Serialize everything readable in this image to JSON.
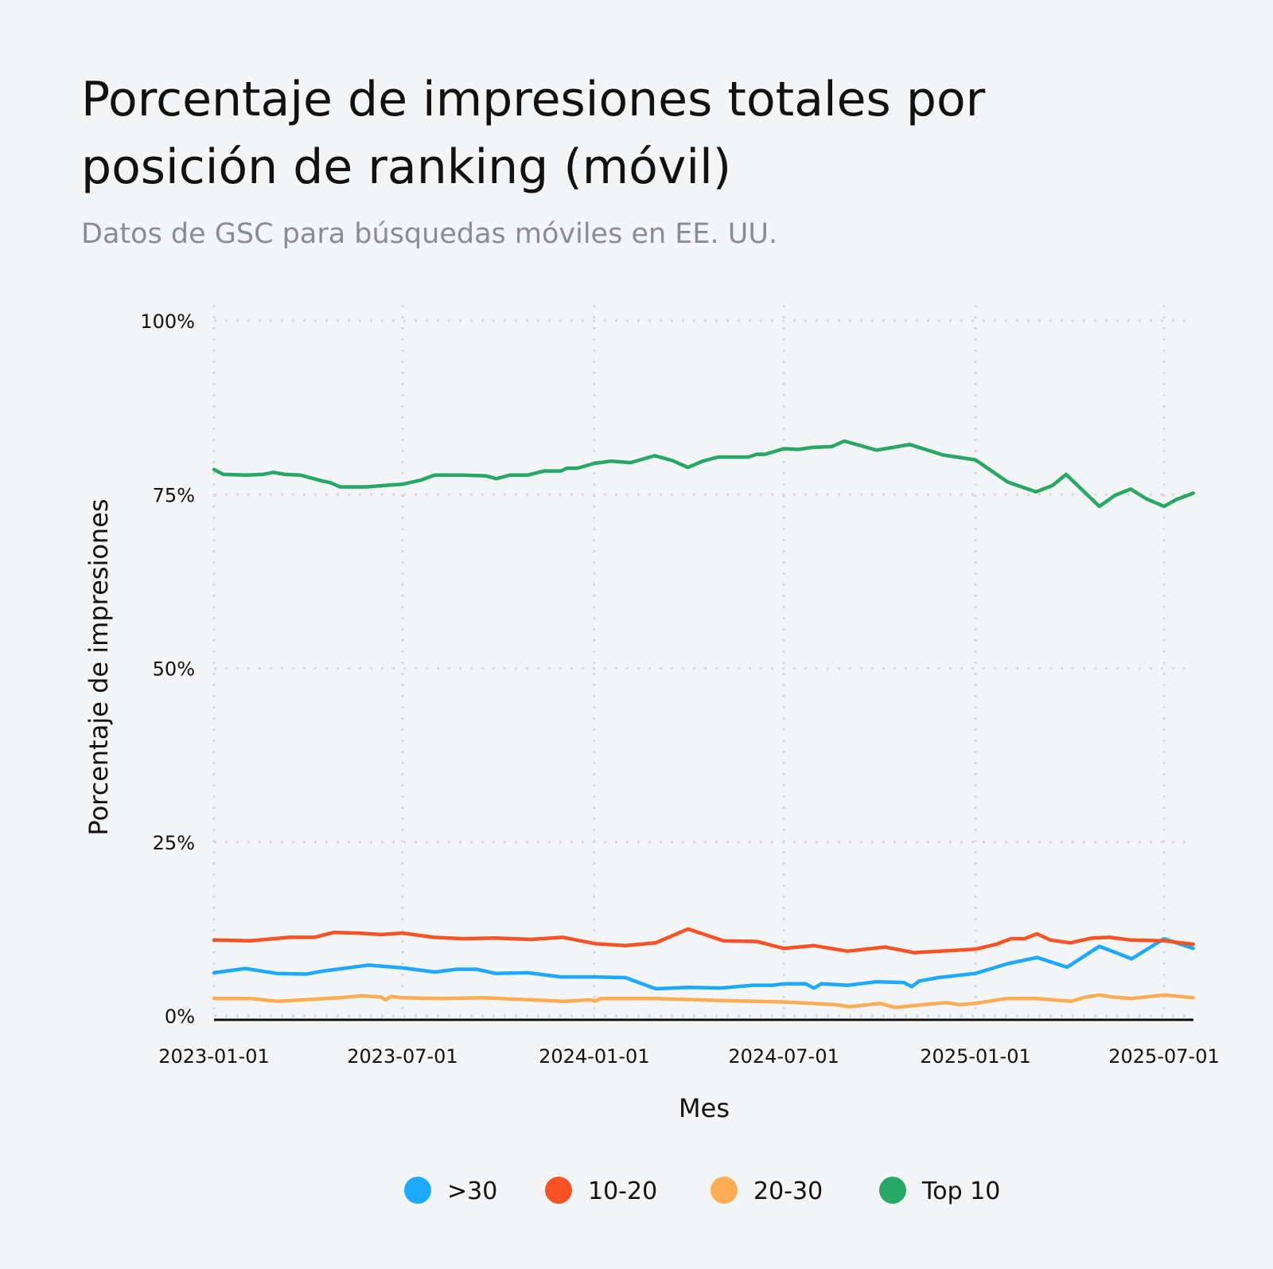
{
  "chart_data": {
    "type": "line",
    "title": "Porcentaje de impresiones totales por posición de ranking (móvil)",
    "title_lines": [
      "Porcentaje de impresiones totales por",
      "posición de ranking (móvil)"
    ],
    "subtitle": "Datos de GSC para búsquedas móviles en EE. UU.",
    "xlabel": "Mes",
    "ylabel": "Porcentaje de impresiones",
    "x_ticks": [
      "2023-01-01",
      "2023-07-01",
      "2024-01-01",
      "2024-07-01",
      "2025-01-01",
      "2025-07-01"
    ],
    "y_ticks": [
      0,
      25,
      50,
      75,
      100
    ],
    "y_tick_labels": [
      "0%",
      "25%",
      "50%",
      "75%",
      "100%"
    ],
    "ylim": [
      0,
      100
    ],
    "xlim": [
      "2023-01-01",
      "2025-07-29"
    ],
    "grid": true,
    "legend_position": "bottom",
    "series": [
      {
        "name": ">30",
        "color": "#1da9fc",
        "points": [
          [
            "2023-01-01",
            6.2
          ],
          [
            "2023-01-31",
            6.8
          ],
          [
            "2023-03-02",
            6.1
          ],
          [
            "2023-03-31",
            6.0
          ],
          [
            "2023-04-14",
            6.4
          ],
          [
            "2023-05-29",
            7.3
          ],
          [
            "2023-07-01",
            6.9
          ],
          [
            "2023-08-01",
            6.3
          ],
          [
            "2023-08-22",
            6.7
          ],
          [
            "2023-09-10",
            6.7
          ],
          [
            "2023-09-28",
            6.1
          ],
          [
            "2023-10-29",
            6.2
          ],
          [
            "2023-11-30",
            5.6
          ],
          [
            "2024-01-01",
            5.6
          ],
          [
            "2024-01-31",
            5.5
          ],
          [
            "2024-02-29",
            3.9
          ],
          [
            "2024-03-31",
            4.1
          ],
          [
            "2024-05-01",
            4.0
          ],
          [
            "2024-06-01",
            4.4
          ],
          [
            "2024-06-20",
            4.4
          ],
          [
            "2024-07-01",
            4.6
          ],
          [
            "2024-07-22",
            4.6
          ],
          [
            "2024-07-30",
            4.0
          ],
          [
            "2024-08-06",
            4.6
          ],
          [
            "2024-08-31",
            4.4
          ],
          [
            "2024-09-28",
            4.9
          ],
          [
            "2024-10-24",
            4.8
          ],
          [
            "2024-11-01",
            4.2
          ],
          [
            "2024-11-08",
            5.0
          ],
          [
            "2024-11-26",
            5.5
          ],
          [
            "2025-01-01",
            6.1
          ],
          [
            "2025-02-01",
            7.5
          ],
          [
            "2025-03-01",
            8.4
          ],
          [
            "2025-03-30",
            7.0
          ],
          [
            "2025-04-30",
            10.0
          ],
          [
            "2025-05-31",
            8.2
          ],
          [
            "2025-07-01",
            11.1
          ],
          [
            "2025-07-29",
            9.7
          ]
        ]
      },
      {
        "name": "10-20",
        "color": "#f95224",
        "points": [
          [
            "2023-01-01",
            10.9
          ],
          [
            "2023-02-05",
            10.8
          ],
          [
            "2023-03-14",
            11.3
          ],
          [
            "2023-04-07",
            11.3
          ],
          [
            "2023-04-26",
            12.0
          ],
          [
            "2023-05-20",
            11.9
          ],
          [
            "2023-06-10",
            11.7
          ],
          [
            "2023-07-01",
            11.9
          ],
          [
            "2023-07-31",
            11.3
          ],
          [
            "2023-08-28",
            11.1
          ],
          [
            "2023-09-28",
            11.2
          ],
          [
            "2023-11-01",
            11.0
          ],
          [
            "2023-12-02",
            11.3
          ],
          [
            "2024-01-01",
            10.4
          ],
          [
            "2024-01-31",
            10.1
          ],
          [
            "2024-02-29",
            10.5
          ],
          [
            "2024-03-31",
            12.5
          ],
          [
            "2024-05-04",
            10.8
          ],
          [
            "2024-06-05",
            10.7
          ],
          [
            "2024-07-01",
            9.7
          ],
          [
            "2024-07-30",
            10.1
          ],
          [
            "2024-08-31",
            9.3
          ],
          [
            "2024-10-06",
            9.9
          ],
          [
            "2024-11-03",
            9.1
          ],
          [
            "2025-01-01",
            9.6
          ],
          [
            "2025-01-21",
            10.3
          ],
          [
            "2025-02-04",
            11.1
          ],
          [
            "2025-02-17",
            11.1
          ],
          [
            "2025-03-01",
            11.8
          ],
          [
            "2025-03-14",
            10.9
          ],
          [
            "2025-04-02",
            10.5
          ],
          [
            "2025-04-23",
            11.2
          ],
          [
            "2025-05-10",
            11.3
          ],
          [
            "2025-05-30",
            10.9
          ],
          [
            "2025-07-01",
            10.8
          ],
          [
            "2025-07-29",
            10.3
          ]
        ]
      },
      {
        "name": "20-30",
        "color": "#fdae55",
        "points": [
          [
            "2023-01-01",
            2.5
          ],
          [
            "2023-02-05",
            2.5
          ],
          [
            "2023-03-03",
            2.1
          ],
          [
            "2023-05-02",
            2.6
          ],
          [
            "2023-05-23",
            2.9
          ],
          [
            "2023-06-10",
            2.7
          ],
          [
            "2023-06-15",
            2.3
          ],
          [
            "2023-06-20",
            2.8
          ],
          [
            "2023-07-01",
            2.6
          ],
          [
            "2023-08-07",
            2.5
          ],
          [
            "2023-09-17",
            2.6
          ],
          [
            "2023-11-01",
            2.3
          ],
          [
            "2023-12-03",
            2.1
          ],
          [
            "2023-12-28",
            2.3
          ],
          [
            "2024-01-02",
            2.1
          ],
          [
            "2024-01-07",
            2.5
          ],
          [
            "2024-02-29",
            2.5
          ],
          [
            "2024-05-01",
            2.2
          ],
          [
            "2024-07-01",
            2.0
          ],
          [
            "2024-08-20",
            1.6
          ],
          [
            "2024-09-02",
            1.3
          ],
          [
            "2024-10-01",
            1.8
          ],
          [
            "2024-10-16",
            1.2
          ],
          [
            "2024-12-03",
            1.9
          ],
          [
            "2024-12-17",
            1.6
          ],
          [
            "2025-01-01",
            1.8
          ],
          [
            "2025-01-31",
            2.5
          ],
          [
            "2025-03-01",
            2.5
          ],
          [
            "2025-04-03",
            2.1
          ],
          [
            "2025-04-17",
            2.7
          ],
          [
            "2025-04-30",
            3.0
          ],
          [
            "2025-05-13",
            2.7
          ],
          [
            "2025-05-31",
            2.5
          ],
          [
            "2025-07-01",
            3.0
          ],
          [
            "2025-07-29",
            2.6
          ]
        ]
      },
      {
        "name": "Top 10",
        "color": "#27a865",
        "points": [
          [
            "2023-01-01",
            78.6
          ],
          [
            "2023-01-10",
            77.9
          ],
          [
            "2023-02-01",
            77.8
          ],
          [
            "2023-02-17",
            77.9
          ],
          [
            "2023-02-27",
            78.2
          ],
          [
            "2023-03-10",
            77.9
          ],
          [
            "2023-03-25",
            77.8
          ],
          [
            "2023-04-14",
            77.0
          ],
          [
            "2023-04-23",
            76.7
          ],
          [
            "2023-05-02",
            76.1
          ],
          [
            "2023-05-27",
            76.1
          ],
          [
            "2023-06-22",
            76.4
          ],
          [
            "2023-07-01",
            76.5
          ],
          [
            "2023-07-19",
            77.1
          ],
          [
            "2023-08-01",
            77.8
          ],
          [
            "2023-08-27",
            77.8
          ],
          [
            "2023-09-19",
            77.7
          ],
          [
            "2023-09-29",
            77.3
          ],
          [
            "2023-10-12",
            77.8
          ],
          [
            "2023-10-29",
            77.8
          ],
          [
            "2023-11-14",
            78.4
          ],
          [
            "2023-11-30",
            78.4
          ],
          [
            "2023-12-06",
            78.8
          ],
          [
            "2023-12-16",
            78.8
          ],
          [
            "2024-01-01",
            79.5
          ],
          [
            "2024-01-17",
            79.8
          ],
          [
            "2024-02-05",
            79.6
          ],
          [
            "2024-02-28",
            80.6
          ],
          [
            "2024-03-16",
            79.9
          ],
          [
            "2024-03-31",
            78.9
          ],
          [
            "2024-04-14",
            79.8
          ],
          [
            "2024-04-29",
            80.4
          ],
          [
            "2024-05-28",
            80.4
          ],
          [
            "2024-06-05",
            80.8
          ],
          [
            "2024-06-13",
            80.8
          ],
          [
            "2024-07-01",
            81.6
          ],
          [
            "2024-07-15",
            81.5
          ],
          [
            "2024-07-29",
            81.8
          ],
          [
            "2024-08-16",
            81.9
          ],
          [
            "2024-08-28",
            82.7
          ],
          [
            "2024-09-28",
            81.4
          ],
          [
            "2024-10-30",
            82.2
          ],
          [
            "2024-12-01",
            80.7
          ],
          [
            "2025-01-01",
            80.0
          ],
          [
            "2025-02-01",
            76.8
          ],
          [
            "2025-02-28",
            75.4
          ],
          [
            "2025-03-16",
            76.3
          ],
          [
            "2025-03-29",
            77.9
          ],
          [
            "2025-04-30",
            73.3
          ],
          [
            "2025-05-15",
            74.9
          ],
          [
            "2025-05-30",
            75.8
          ],
          [
            "2025-06-14",
            74.4
          ],
          [
            "2025-07-01",
            73.3
          ],
          [
            "2025-07-13",
            74.3
          ],
          [
            "2025-07-29",
            75.2
          ]
        ]
      }
    ]
  }
}
